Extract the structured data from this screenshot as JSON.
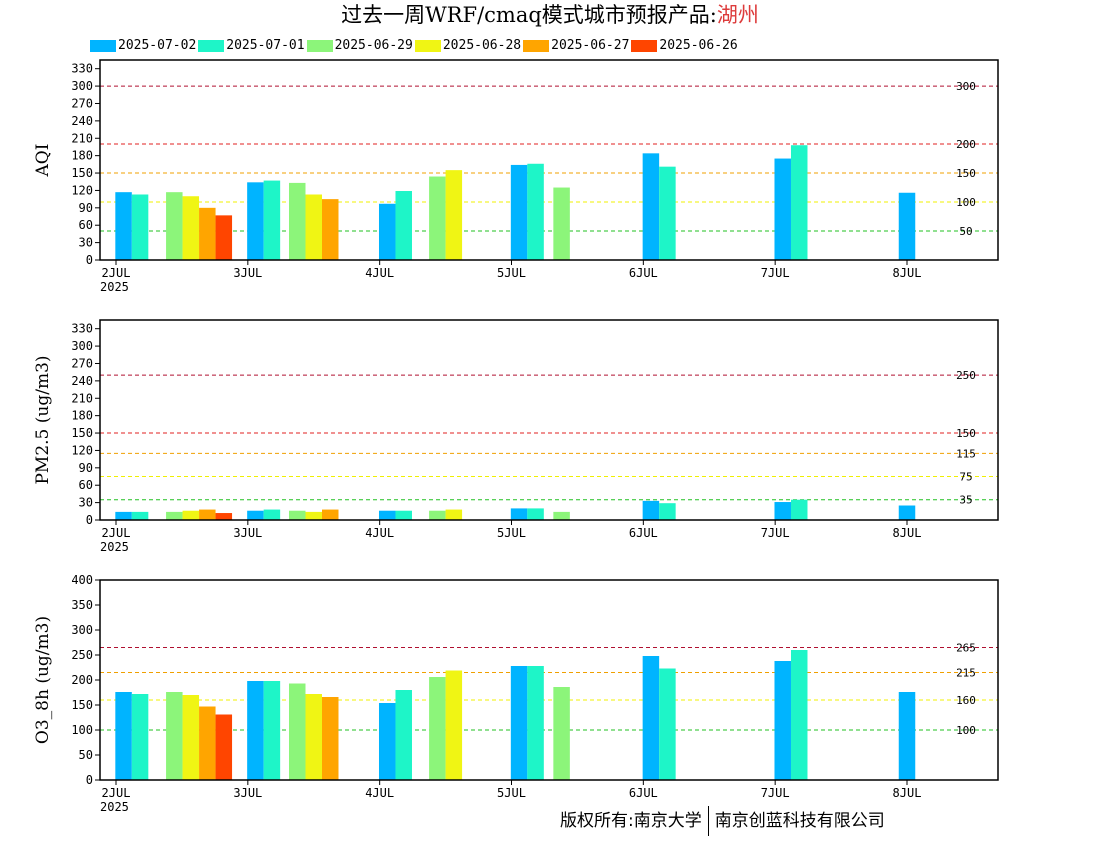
{
  "title": {
    "main": "过去一周WRF/cmaq模式城市预报产品:",
    "city": "湖州",
    "city_color": "#dd3b3b"
  },
  "footer": {
    "owner": "版权所有:南京大学",
    "company": "南京创蓝科技有限公司"
  },
  "chart_data": [
    {
      "type": "bar",
      "ylabel": "AQI",
      "ylim": [
        0,
        345
      ],
      "yticks": [
        0,
        30,
        60,
        90,
        120,
        150,
        180,
        210,
        240,
        270,
        300,
        330
      ],
      "xlim": [
        0,
        6.5
      ],
      "xticks": [
        {
          "pos": 0,
          "label": "2JUL",
          "sub": "2025"
        },
        {
          "pos": 1,
          "label": "3JUL"
        },
        {
          "pos": 2,
          "label": "4JUL"
        },
        {
          "pos": 3,
          "label": "5JUL"
        },
        {
          "pos": 4,
          "label": "6JUL"
        },
        {
          "pos": 5,
          "label": "7JUL"
        },
        {
          "pos": 6,
          "label": "8JUL"
        }
      ],
      "thresholds": [
        {
          "value": 300,
          "label": "300",
          "color": "#b01030"
        },
        {
          "value": 200,
          "label": "200",
          "color": "#e02020"
        },
        {
          "value": 150,
          "label": "150",
          "color": "#f0a000"
        },
        {
          "value": 100,
          "label": "100",
          "color": "#f0f000"
        },
        {
          "value": 50,
          "label": "50",
          "color": "#20c020"
        }
      ],
      "groups": [
        {
          "center": 0.12,
          "series": [
            0,
            1
          ],
          "values": [
            117,
            113
          ]
        },
        {
          "center": 0.63,
          "series": [
            2,
            3,
            4,
            5
          ],
          "values": [
            117,
            110,
            90,
            77
          ]
        },
        {
          "center": 1.12,
          "series": [
            0,
            1
          ],
          "values": [
            134,
            137
          ]
        },
        {
          "center": 1.5,
          "series": [
            2,
            3,
            4
          ],
          "values": [
            133,
            113,
            105
          ]
        },
        {
          "center": 2.12,
          "series": [
            0,
            1
          ],
          "values": [
            97,
            119
          ]
        },
        {
          "center": 2.5,
          "series": [
            2,
            3
          ],
          "values": [
            144,
            155
          ]
        },
        {
          "center": 3.12,
          "series": [
            0,
            1
          ],
          "values": [
            164,
            166
          ]
        },
        {
          "center": 3.38,
          "series": [
            2
          ],
          "values": [
            125
          ]
        },
        {
          "center": 4.12,
          "series": [
            0,
            1
          ],
          "values": [
            184,
            161
          ]
        },
        {
          "center": 5.12,
          "series": [
            0,
            1
          ],
          "values": [
            175,
            198
          ]
        },
        {
          "center": 6.0,
          "series": [
            0
          ],
          "values": [
            116
          ]
        }
      ]
    },
    {
      "type": "bar",
      "ylabel": "PM2.5 (ug/m3)",
      "ylim": [
        0,
        345
      ],
      "yticks": [
        0,
        30,
        60,
        90,
        120,
        150,
        180,
        210,
        240,
        270,
        300,
        330
      ],
      "xlim": [
        0,
        6.5
      ],
      "xticks": [
        {
          "pos": 0,
          "label": "2JUL",
          "sub": "2025"
        },
        {
          "pos": 1,
          "label": "3JUL"
        },
        {
          "pos": 2,
          "label": "4JUL"
        },
        {
          "pos": 3,
          "label": "5JUL"
        },
        {
          "pos": 4,
          "label": "6JUL"
        },
        {
          "pos": 5,
          "label": "7JUL"
        },
        {
          "pos": 6,
          "label": "8JUL"
        }
      ],
      "thresholds": [
        {
          "value": 250,
          "label": "250",
          "color": "#b01030"
        },
        {
          "value": 150,
          "label": "150",
          "color": "#e02020"
        },
        {
          "value": 115,
          "label": "115",
          "color": "#f0a000"
        },
        {
          "value": 75,
          "label": "75",
          "color": "#f0f000"
        },
        {
          "value": 35,
          "label": "35",
          "color": "#20c020"
        }
      ],
      "groups": [
        {
          "center": 0.12,
          "series": [
            0,
            1
          ],
          "values": [
            14,
            14
          ]
        },
        {
          "center": 0.63,
          "series": [
            2,
            3,
            4,
            5
          ],
          "values": [
            14,
            16,
            18,
            12
          ]
        },
        {
          "center": 1.12,
          "series": [
            0,
            1
          ],
          "values": [
            16,
            18
          ]
        },
        {
          "center": 1.5,
          "series": [
            2,
            3,
            4
          ],
          "values": [
            16,
            14,
            18
          ]
        },
        {
          "center": 2.12,
          "series": [
            0,
            1
          ],
          "values": [
            16,
            16
          ]
        },
        {
          "center": 2.5,
          "series": [
            2,
            3
          ],
          "values": [
            16,
            18
          ]
        },
        {
          "center": 3.12,
          "series": [
            0,
            1
          ],
          "values": [
            20,
            20
          ]
        },
        {
          "center": 3.38,
          "series": [
            2
          ],
          "values": [
            14
          ]
        },
        {
          "center": 4.12,
          "series": [
            0,
            1
          ],
          "values": [
            33,
            29
          ]
        },
        {
          "center": 5.12,
          "series": [
            0,
            1
          ],
          "values": [
            31,
            35
          ]
        },
        {
          "center": 6.0,
          "series": [
            0
          ],
          "values": [
            25
          ]
        }
      ]
    },
    {
      "type": "bar",
      "ylabel": "O3_8h (ug/m3)",
      "ylim": [
        0,
        400
      ],
      "yticks": [
        0,
        50,
        100,
        150,
        200,
        250,
        300,
        350,
        400
      ],
      "xlim": [
        0,
        6.5
      ],
      "xticks": [
        {
          "pos": 0,
          "label": "2JUL",
          "sub": "2025"
        },
        {
          "pos": 1,
          "label": "3JUL"
        },
        {
          "pos": 2,
          "label": "4JUL"
        },
        {
          "pos": 3,
          "label": "5JUL"
        },
        {
          "pos": 4,
          "label": "6JUL"
        },
        {
          "pos": 5,
          "label": "7JUL"
        },
        {
          "pos": 6,
          "label": "8JUL"
        }
      ],
      "thresholds": [
        {
          "value": 265,
          "label": "265",
          "color": "#b01030"
        },
        {
          "value": 215,
          "label": "215",
          "color": "#f0a000"
        },
        {
          "value": 160,
          "label": "160",
          "color": "#f0f000"
        },
        {
          "value": 100,
          "label": "100",
          "color": "#20c020"
        }
      ],
      "groups": [
        {
          "center": 0.12,
          "series": [
            0,
            1
          ],
          "values": [
            176,
            172
          ]
        },
        {
          "center": 0.63,
          "series": [
            2,
            3,
            4,
            5
          ],
          "values": [
            176,
            170,
            147,
            131
          ]
        },
        {
          "center": 1.12,
          "series": [
            0,
            1
          ],
          "values": [
            198,
            198
          ]
        },
        {
          "center": 1.5,
          "series": [
            2,
            3,
            4
          ],
          "values": [
            193,
            172,
            166
          ]
        },
        {
          "center": 2.12,
          "series": [
            0,
            1
          ],
          "values": [
            154,
            180
          ]
        },
        {
          "center": 2.5,
          "series": [
            2,
            3
          ],
          "values": [
            206,
            219
          ]
        },
        {
          "center": 3.12,
          "series": [
            0,
            1
          ],
          "values": [
            228,
            228
          ]
        },
        {
          "center": 3.38,
          "series": [
            2
          ],
          "values": [
            186
          ]
        },
        {
          "center": 4.12,
          "series": [
            0,
            1
          ],
          "values": [
            248,
            223
          ]
        },
        {
          "center": 5.12,
          "series": [
            0,
            1
          ],
          "values": [
            238,
            260
          ]
        },
        {
          "center": 6.0,
          "series": [
            0
          ],
          "values": [
            176
          ]
        }
      ]
    }
  ],
  "legend": [
    {
      "name": "2025-07-02",
      "color": "#00b4ff"
    },
    {
      "name": "2025-07-01",
      "color": "#1ef5c8"
    },
    {
      "name": "2025-06-29",
      "color": "#8cf57a"
    },
    {
      "name": "2025-06-28",
      "color": "#f0f514"
    },
    {
      "name": "2025-06-27",
      "color": "#ffa500"
    },
    {
      "name": "2025-06-26",
      "color": "#ff4500"
    }
  ]
}
